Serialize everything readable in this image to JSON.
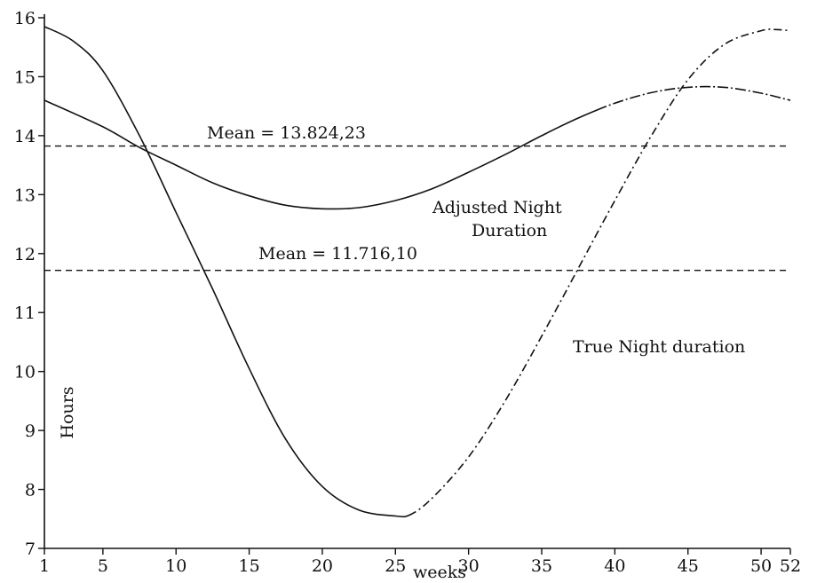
{
  "chart_data": {
    "type": "line",
    "title": "",
    "xlabel": "weeks",
    "ylabel": "Hours",
    "xlim": [
      1,
      52
    ],
    "ylim": [
      7,
      16
    ],
    "x_ticks": [
      1,
      5,
      10,
      15,
      20,
      25,
      30,
      35,
      40,
      45,
      50,
      52
    ],
    "y_ticks": [
      7,
      8,
      9,
      10,
      11,
      12,
      13,
      14,
      15,
      16
    ],
    "grid": false,
    "legend": "none",
    "series": [
      {
        "label": "True Night duration",
        "style": "solid-then-dashdot",
        "x": [
          1,
          3,
          5,
          7.5,
          10,
          12.5,
          15,
          17.5,
          20,
          22.5,
          25,
          26,
          27.5,
          30,
          32.5,
          35,
          37.5,
          40,
          42.5,
          45,
          47.5,
          50,
          51,
          52
        ],
        "y": [
          15.85,
          15.6,
          15.1,
          14.0,
          12.7,
          11.4,
          10.05,
          8.85,
          8.05,
          7.65,
          7.55,
          7.57,
          7.85,
          8.55,
          9.5,
          10.6,
          11.75,
          12.9,
          14.0,
          14.95,
          15.55,
          15.78,
          15.8,
          15.78
        ]
      },
      {
        "label": "Adjusted Night Duration",
        "style": "solid-then-dashdot",
        "x": [
          1,
          5,
          7.5,
          10,
          12.5,
          15,
          17.5,
          20,
          22.5,
          25,
          27.5,
          30,
          32.5,
          35,
          37.5,
          40,
          42.5,
          45,
          47.5,
          50,
          52
        ],
        "y": [
          14.6,
          14.15,
          13.8,
          13.5,
          13.2,
          12.98,
          12.82,
          12.76,
          12.78,
          12.9,
          13.1,
          13.38,
          13.68,
          14.0,
          14.3,
          14.55,
          14.73,
          14.82,
          14.82,
          14.72,
          14.6
        ]
      }
    ],
    "annotations": [
      {
        "text": "Mean = 13.824,23",
        "value": 13.8242
      },
      {
        "text": "Mean = 11.716,10",
        "value": 11.7161
      },
      {
        "text_line1": "Adjusted Night",
        "text_line2": "Duration"
      },
      {
        "text": "True Night duration"
      }
    ]
  }
}
